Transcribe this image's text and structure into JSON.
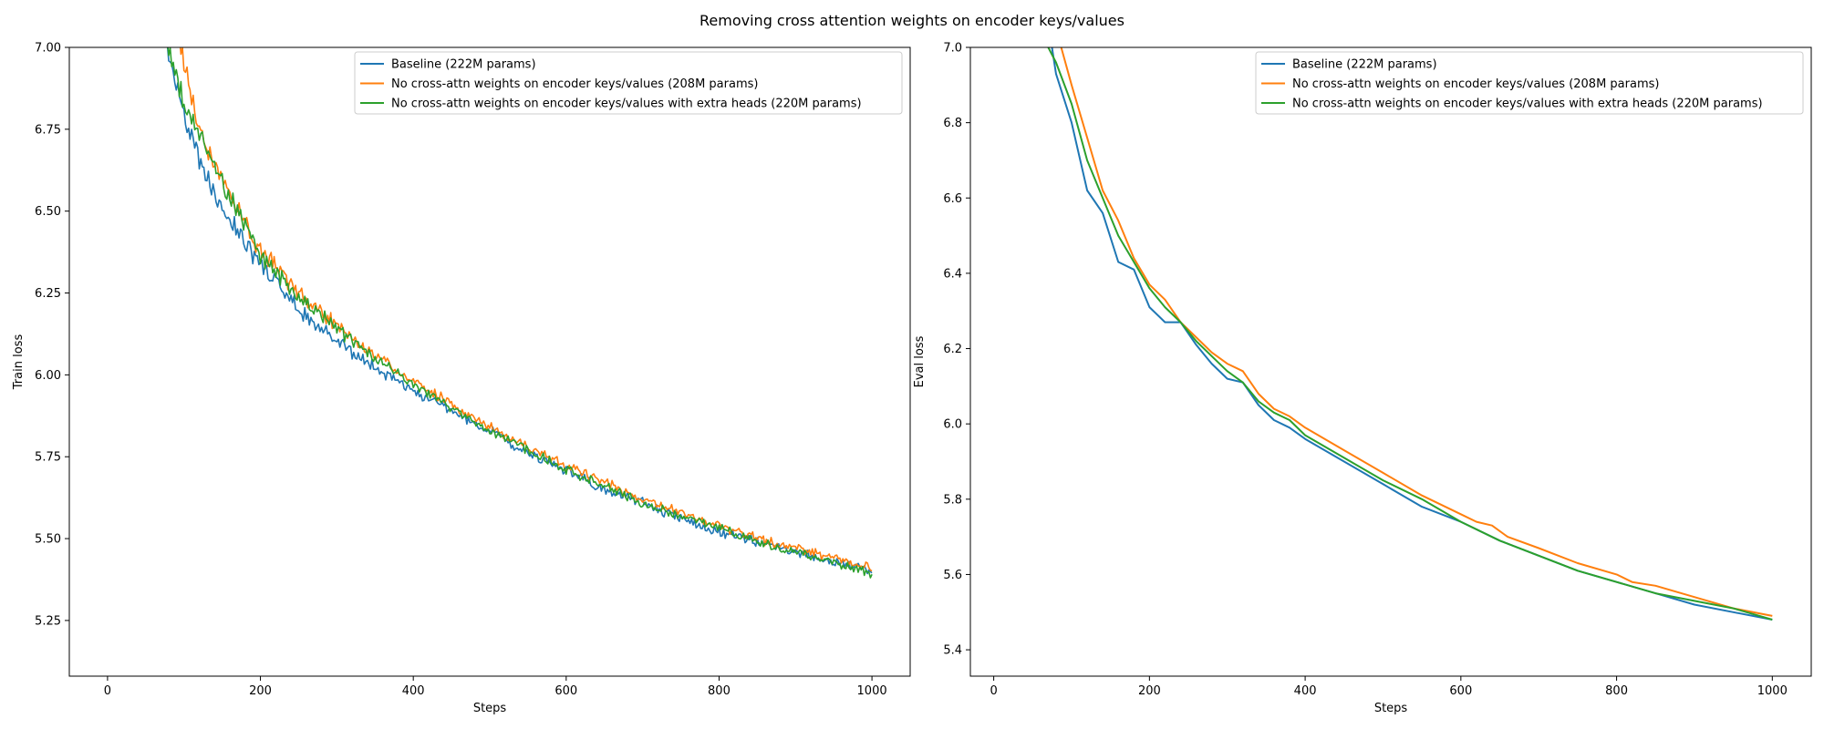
{
  "figure": {
    "suptitle": "Removing cross attention weights on encoder keys/values"
  },
  "chart_data": [
    {
      "type": "line",
      "title": "",
      "xlabel": "Steps",
      "ylabel": "Train loss",
      "xlim": [
        -50,
        1050
      ],
      "ylim": [
        5.08,
        7.0
      ],
      "xticks": [
        0,
        200,
        400,
        600,
        800,
        1000
      ],
      "yticks": [
        5.25,
        5.5,
        5.75,
        6.0,
        6.25,
        6.5,
        6.75,
        7.0
      ],
      "ytick_labels": [
        "5.25",
        "5.50",
        "5.75",
        "6.00",
        "6.25",
        "6.50",
        "6.75",
        "7.00"
      ],
      "grid": false,
      "legend_position": "upper right",
      "series": [
        {
          "name": "Baseline (222M params)",
          "color": "#1f77b4",
          "x": [
            60,
            80,
            100,
            120,
            150,
            200,
            250,
            300,
            350,
            400,
            450,
            500,
            550,
            600,
            650,
            700,
            750,
            800,
            850,
            900,
            950,
            1000
          ],
          "y": [
            7.25,
            6.97,
            6.8,
            6.65,
            6.52,
            6.33,
            6.2,
            6.1,
            6.02,
            5.95,
            5.89,
            5.83,
            5.76,
            5.71,
            5.65,
            5.61,
            5.56,
            5.52,
            5.49,
            5.46,
            5.43,
            5.4
          ]
        },
        {
          "name": "No cross-attn weights on encoder keys/values (208M params)",
          "color": "#ff7f0e",
          "x": [
            80,
            100,
            120,
            150,
            200,
            250,
            300,
            350,
            400,
            450,
            500,
            550,
            600,
            650,
            700,
            750,
            800,
            850,
            900,
            950,
            1000
          ],
          "y": [
            7.25,
            6.95,
            6.75,
            6.6,
            6.38,
            6.25,
            6.15,
            6.06,
            5.98,
            5.91,
            5.84,
            5.78,
            5.72,
            5.67,
            5.62,
            5.58,
            5.54,
            5.5,
            5.47,
            5.44,
            5.41
          ]
        },
        {
          "name": "No cross-attn weights on encoder keys/values with extra heads (220M params)",
          "color": "#2ca02c",
          "x": [
            70,
            90,
            110,
            130,
            150,
            200,
            250,
            300,
            350,
            400,
            450,
            500,
            550,
            600,
            650,
            700,
            750,
            800,
            850,
            900,
            950,
            1000
          ],
          "y": [
            7.1,
            6.9,
            6.78,
            6.68,
            6.58,
            6.37,
            6.24,
            6.14,
            6.05,
            5.97,
            5.9,
            5.83,
            5.77,
            5.71,
            5.66,
            5.61,
            5.57,
            5.53,
            5.49,
            5.46,
            5.43,
            5.39
          ]
        }
      ]
    },
    {
      "type": "line",
      "title": "",
      "xlabel": "Steps",
      "ylabel": "Eval loss",
      "xlim": [
        -30,
        1050
      ],
      "ylim": [
        5.33,
        7.0
      ],
      "xticks": [
        0,
        200,
        400,
        600,
        800,
        1000
      ],
      "yticks": [
        5.4,
        5.6,
        5.8,
        6.0,
        6.2,
        6.4,
        6.6,
        6.8,
        7.0
      ],
      "ytick_labels": [
        "5.4",
        "5.6",
        "5.8",
        "6.0",
        "6.2",
        "6.4",
        "6.6",
        "6.8",
        "7.0"
      ],
      "grid": false,
      "legend_position": "upper right",
      "series": [
        {
          "name": "Baseline (222M params)",
          "color": "#1f77b4",
          "x": [
            60,
            80,
            100,
            120,
            140,
            160,
            180,
            200,
            220,
            240,
            260,
            280,
            300,
            320,
            340,
            360,
            380,
            400,
            450,
            500,
            550,
            600,
            650,
            700,
            750,
            800,
            850,
            900,
            950,
            1000
          ],
          "y": [
            7.2,
            6.93,
            6.8,
            6.62,
            6.56,
            6.43,
            6.41,
            6.31,
            6.27,
            6.27,
            6.21,
            6.16,
            6.12,
            6.11,
            6.05,
            6.01,
            5.99,
            5.96,
            5.9,
            5.84,
            5.78,
            5.74,
            5.69,
            5.65,
            5.61,
            5.58,
            5.55,
            5.52,
            5.5,
            5.48
          ]
        },
        {
          "name": "No cross-attn weights on encoder keys/values (208M params)",
          "color": "#ff7f0e",
          "x": [
            80,
            100,
            120,
            140,
            160,
            180,
            200,
            220,
            240,
            260,
            280,
            300,
            320,
            340,
            360,
            380,
            400,
            450,
            500,
            550,
            600,
            620,
            640,
            660,
            700,
            750,
            800,
            820,
            850,
            900,
            950,
            1000
          ],
          "y": [
            7.05,
            6.9,
            6.76,
            6.62,
            6.54,
            6.44,
            6.37,
            6.33,
            6.27,
            6.23,
            6.19,
            6.16,
            6.14,
            6.08,
            6.04,
            6.02,
            5.99,
            5.93,
            5.87,
            5.81,
            5.76,
            5.74,
            5.73,
            5.7,
            5.67,
            5.63,
            5.6,
            5.58,
            5.57,
            5.54,
            5.51,
            5.49
          ]
        },
        {
          "name": "No cross-attn weights on encoder keys/values with extra heads (220M params)",
          "color": "#2ca02c",
          "x": [
            70,
            80,
            100,
            120,
            140,
            160,
            180,
            200,
            220,
            240,
            260,
            280,
            300,
            320,
            340,
            360,
            380,
            400,
            450,
            500,
            550,
            600,
            650,
            700,
            750,
            800,
            850,
            900,
            950,
            1000
          ],
          "y": [
            7.0,
            6.96,
            6.85,
            6.7,
            6.6,
            6.5,
            6.43,
            6.36,
            6.31,
            6.27,
            6.22,
            6.18,
            6.14,
            6.11,
            6.06,
            6.03,
            6.01,
            5.97,
            5.91,
            5.85,
            5.8,
            5.74,
            5.69,
            5.65,
            5.61,
            5.58,
            5.55,
            5.53,
            5.51,
            5.48
          ]
        }
      ]
    }
  ]
}
